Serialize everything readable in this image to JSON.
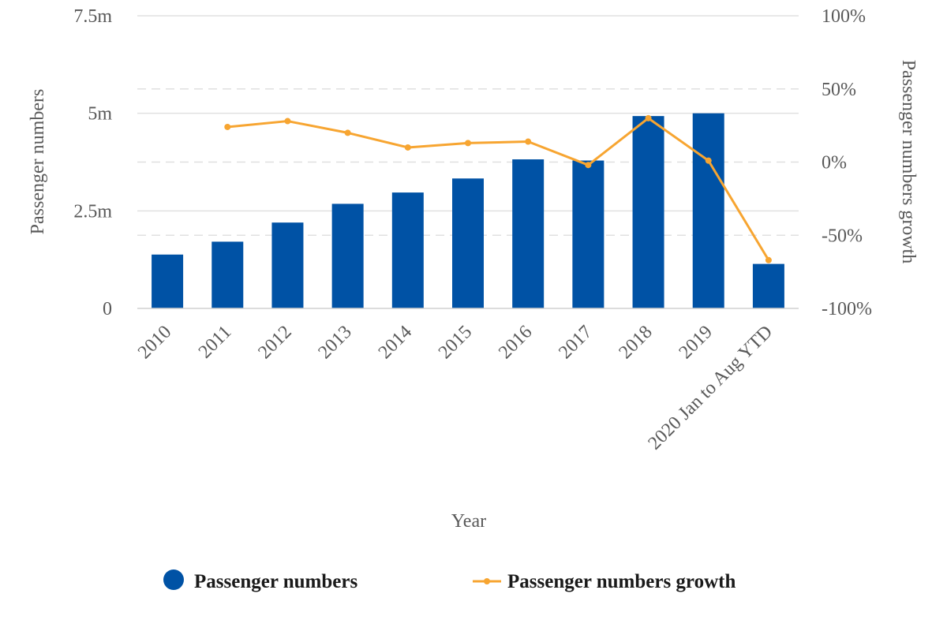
{
  "chart_data": {
    "type": "bar",
    "categories": [
      "2010",
      "2011",
      "2012",
      "2013",
      "2014",
      "2015",
      "2016",
      "2017",
      "2018",
      "2019",
      "2020 Jan to Aug YTD"
    ],
    "series": [
      {
        "name": "Passenger numbers",
        "type": "bar",
        "axis": "left",
        "values": [
          1.38,
          1.71,
          2.2,
          2.68,
          2.97,
          3.33,
          3.82,
          3.79,
          4.93,
          5.0,
          1.14
        ]
      },
      {
        "name": "Passenger numbers growth",
        "type": "line",
        "axis": "right",
        "values": [
          null,
          24,
          28,
          20,
          10,
          13,
          14,
          -2,
          30,
          1,
          -67
        ]
      }
    ],
    "xlabel": "Year",
    "ylabel": "Passenger numbers",
    "y2label": "Passenger numbers growth",
    "ylim": [
      0,
      7.5
    ],
    "y2lim": [
      -100,
      100
    ],
    "y_ticks": [
      {
        "value": 0,
        "label": "0"
      },
      {
        "value": 2.5,
        "label": "2.5m"
      },
      {
        "value": 5,
        "label": "5m"
      },
      {
        "value": 7.5,
        "label": "7.5m"
      }
    ],
    "y2_ticks": [
      {
        "value": -100,
        "label": "-100%"
      },
      {
        "value": -50,
        "label": "-50%"
      },
      {
        "value": 0,
        "label": "0%"
      },
      {
        "value": 50,
        "label": "50%"
      },
      {
        "value": 100,
        "label": "100%"
      }
    ],
    "grid": true,
    "legend_position": "bottom",
    "colors": {
      "bars": "#0052a5",
      "line": "#f7a531",
      "grid": "#e0e0e0",
      "text": "#595959"
    }
  }
}
